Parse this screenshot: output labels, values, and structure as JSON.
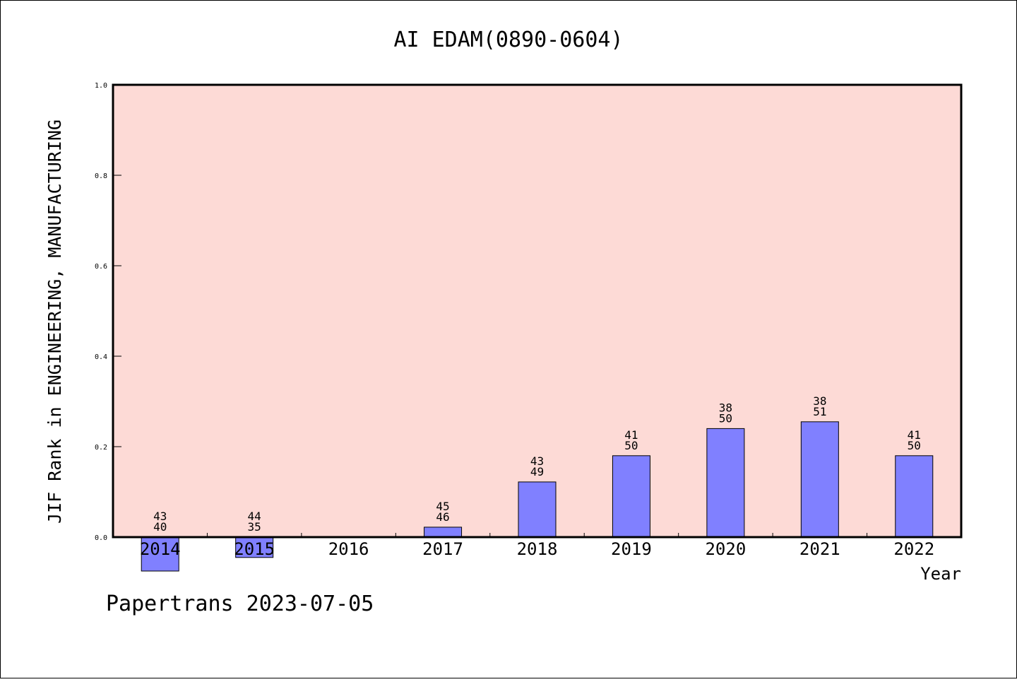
{
  "chart_data": {
    "type": "bar",
    "title": "AI EDAM(0890-0604)",
    "ylabel": "JIF Rank in ENGINEERING, MANUFACTURING",
    "xlabel": "Year",
    "ylim": [
      0,
      1.0
    ],
    "yticks": [
      "0.0",
      "0.2",
      "0.4",
      "0.6",
      "0.8",
      "1.0"
    ],
    "grid": false,
    "colors": {
      "plot_background": "#fddad6",
      "bar_fill": "#8080ff",
      "bar_stroke": "#000000"
    },
    "categories": [
      "2014",
      "2015",
      "2016",
      "2017",
      "2018",
      "2019",
      "2020",
      "2021",
      "2022"
    ],
    "values": [
      -0.075,
      -0.045,
      null,
      0.022,
      0.122,
      0.18,
      0.24,
      0.255,
      0.18
    ],
    "labels_top": [
      "43",
      "44",
      "",
      "45",
      "43",
      "41",
      "38",
      "38",
      "41"
    ],
    "labels_bottom": [
      "40",
      "35",
      "",
      "46",
      "49",
      "50",
      "50",
      "51",
      "50"
    ]
  },
  "footer": "Papertrans 2023-07-05"
}
